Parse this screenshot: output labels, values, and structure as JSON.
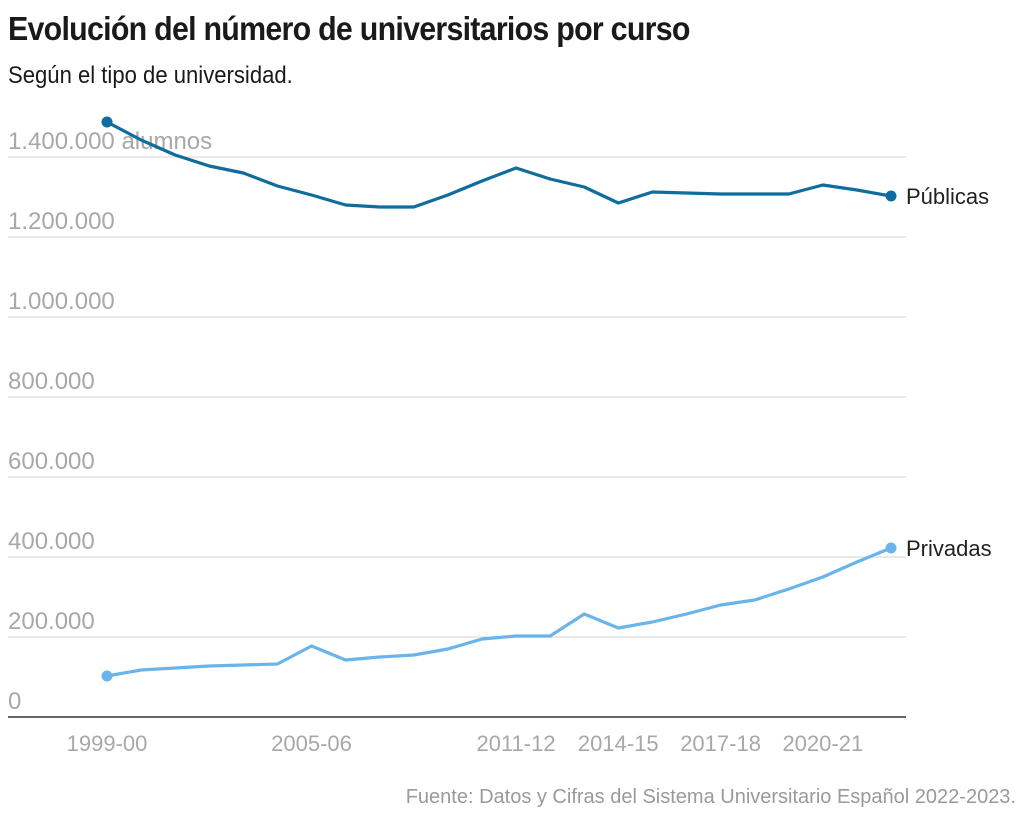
{
  "header": {
    "title": "Evolución del número de universitarios por curso",
    "subtitle": "Según el tipo de universidad."
  },
  "footer": {
    "source": "Fuente: Datos y Cifras del Sistema Universitario Español 2022-2023."
  },
  "chart_data": {
    "type": "line",
    "title": "Evolución del número de universitarios por curso",
    "subtitle": "Según el tipo de universidad.",
    "xlabel": "",
    "ylabel": "alumnos",
    "ylim": [
      0,
      1400000
    ],
    "grid": true,
    "legend": "inline-right",
    "y_ticks": [
      {
        "value": 0,
        "label": "0"
      },
      {
        "value": 200000,
        "label": "200.000"
      },
      {
        "value": 400000,
        "label": "400.000"
      },
      {
        "value": 600000,
        "label": "600.000"
      },
      {
        "value": 800000,
        "label": "800.000"
      },
      {
        "value": 1000000,
        "label": "1.000.000"
      },
      {
        "value": 1200000,
        "label": "1.200.000"
      },
      {
        "value": 1400000,
        "label": "1.400.000 alumnos"
      }
    ],
    "x": [
      "1999-00",
      "2000-01",
      "2001-02",
      "2002-03",
      "2003-04",
      "2004-05",
      "2005-06",
      "2006-07",
      "2007-08",
      "2008-09",
      "2009-10",
      "2010-11",
      "2011-12",
      "2012-13",
      "2013-14",
      "2014-15",
      "2015-16",
      "2016-17",
      "2017-18",
      "2018-19",
      "2019-20",
      "2020-21",
      "2021-22",
      "2022-23"
    ],
    "x_tick_labels": [
      {
        "index": 0,
        "label": "1999-00"
      },
      {
        "index": 6,
        "label": "2005-06"
      },
      {
        "index": 12,
        "label": "2011-12"
      },
      {
        "index": 15,
        "label": "2014-15"
      },
      {
        "index": 18,
        "label": "2017-18"
      },
      {
        "index": 21,
        "label": "2020-21"
      }
    ],
    "series": [
      {
        "name": "Públicas",
        "color": "#0f6d9e",
        "values": [
          1487500,
          1442500,
          1405000,
          1377500,
          1360000,
          1327500,
          1305000,
          1280000,
          1275000,
          1275000,
          1305000,
          1340000,
          1372500,
          1345000,
          1325000,
          1285000,
          1312500,
          1310000,
          1307500,
          1307500,
          1307500,
          1330000,
          1317500,
          1302500
        ]
      },
      {
        "name": "Privadas",
        "color": "#6ab4ec",
        "values": [
          102500,
          117500,
          122500,
          127500,
          130000,
          132500,
          177500,
          142500,
          150000,
          155000,
          170000,
          195000,
          202500,
          202500,
          257500,
          222500,
          237500,
          257500,
          280000,
          292500,
          320000,
          350000,
          387500,
          422500
        ]
      }
    ]
  }
}
